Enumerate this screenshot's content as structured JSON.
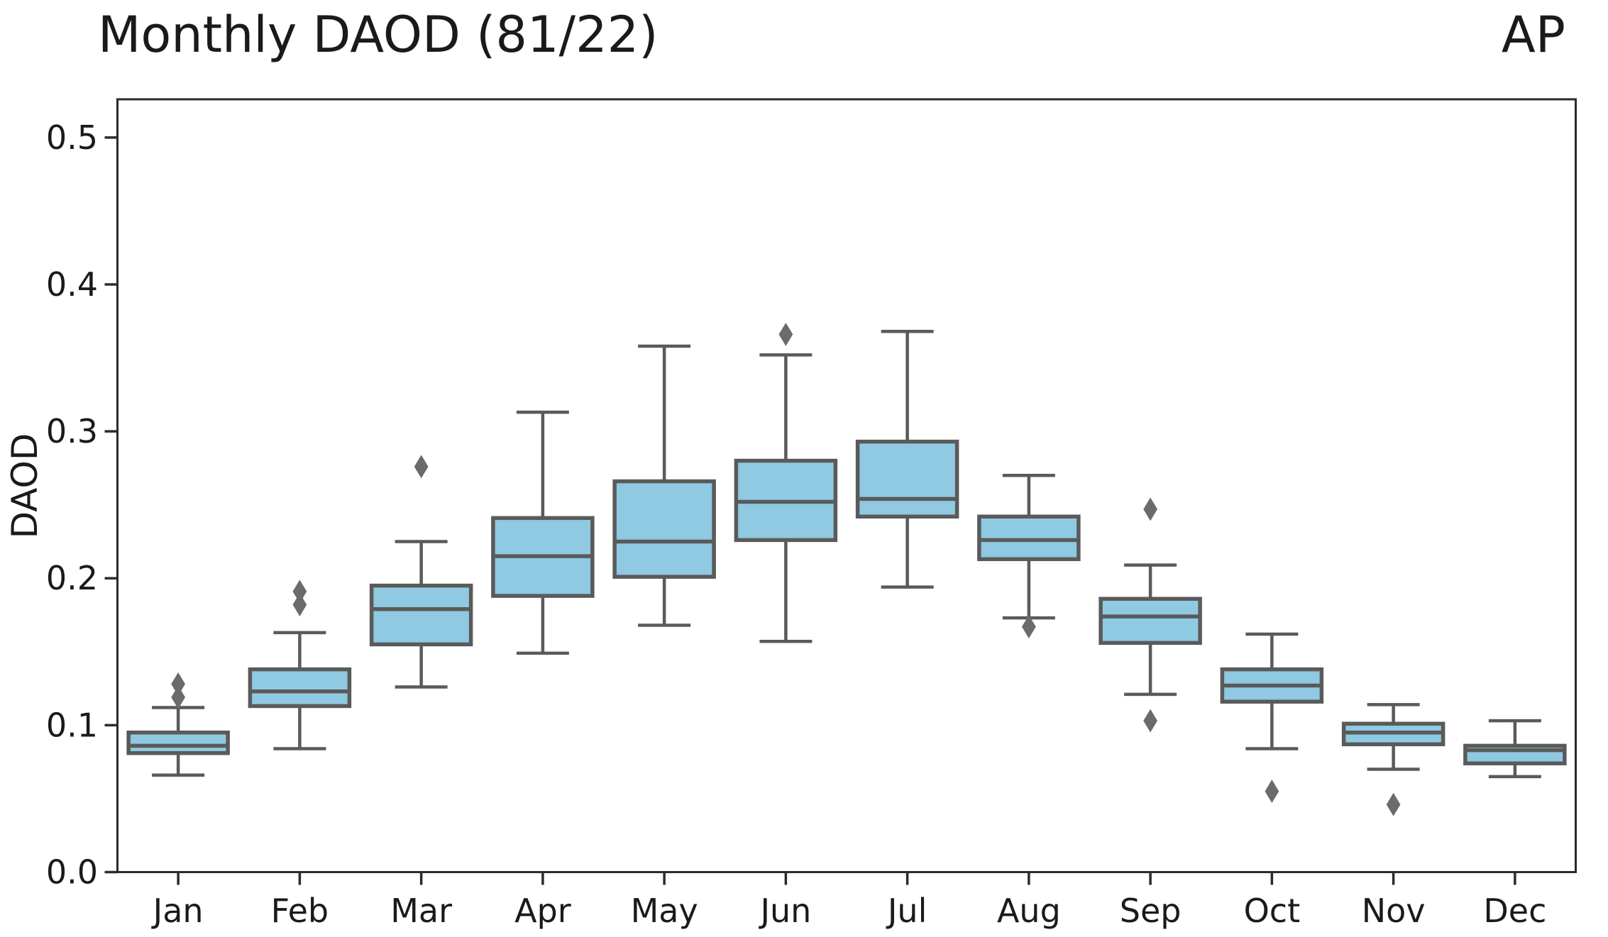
{
  "header": {
    "title": "Monthly DAOD (81/22)",
    "corner_label": "AP"
  },
  "axes": {
    "ylabel": "DAOD",
    "ytick_labels": [
      "0.0",
      "0.1",
      "0.2",
      "0.3",
      "0.4",
      "0.5"
    ],
    "xtick_labels": [
      "Jan",
      "Feb",
      "Mar",
      "Apr",
      "May",
      "Jun",
      "Jul",
      "Aug",
      "Sep",
      "Oct",
      "Nov",
      "Dec"
    ]
  },
  "chart_data": {
    "type": "box",
    "title": "Monthly DAOD (81/22)",
    "annotation": "AP",
    "xlabel": "",
    "ylabel": "DAOD",
    "categories": [
      "Jan",
      "Feb",
      "Mar",
      "Apr",
      "May",
      "Jun",
      "Jul",
      "Aug",
      "Sep",
      "Oct",
      "Nov",
      "Dec"
    ],
    "yticks": [
      0.0,
      0.1,
      0.2,
      0.3,
      0.4,
      0.5
    ],
    "ylim": [
      0.0,
      0.526
    ],
    "grid": false,
    "legend": "none",
    "series": [
      {
        "category": "Jan",
        "whisker_low": 0.066,
        "q1": 0.081,
        "median": 0.086,
        "q3": 0.095,
        "whisker_high": 0.112,
        "outliers": [
          0.119,
          0.128
        ]
      },
      {
        "category": "Feb",
        "whisker_low": 0.084,
        "q1": 0.113,
        "median": 0.123,
        "q3": 0.138,
        "whisker_high": 0.163,
        "outliers": [
          0.182,
          0.191
        ]
      },
      {
        "category": "Mar",
        "whisker_low": 0.126,
        "q1": 0.155,
        "median": 0.179,
        "q3": 0.195,
        "whisker_high": 0.225,
        "outliers": [
          0.276
        ]
      },
      {
        "category": "Apr",
        "whisker_low": 0.149,
        "q1": 0.188,
        "median": 0.215,
        "q3": 0.241,
        "whisker_high": 0.313,
        "outliers": []
      },
      {
        "category": "May",
        "whisker_low": 0.168,
        "q1": 0.201,
        "median": 0.225,
        "q3": 0.266,
        "whisker_high": 0.358,
        "outliers": []
      },
      {
        "category": "Jun",
        "whisker_low": 0.157,
        "q1": 0.226,
        "median": 0.252,
        "q3": 0.28,
        "whisker_high": 0.352,
        "outliers": [
          0.366
        ]
      },
      {
        "category": "Jul",
        "whisker_low": 0.194,
        "q1": 0.242,
        "median": 0.254,
        "q3": 0.293,
        "whisker_high": 0.368,
        "outliers": []
      },
      {
        "category": "Aug",
        "whisker_low": 0.173,
        "q1": 0.213,
        "median": 0.226,
        "q3": 0.242,
        "whisker_high": 0.27,
        "outliers": [
          0.167
        ]
      },
      {
        "category": "Sep",
        "whisker_low": 0.121,
        "q1": 0.156,
        "median": 0.174,
        "q3": 0.186,
        "whisker_high": 0.209,
        "outliers": [
          0.103,
          0.247
        ]
      },
      {
        "category": "Oct",
        "whisker_low": 0.084,
        "q1": 0.116,
        "median": 0.127,
        "q3": 0.138,
        "whisker_high": 0.162,
        "outliers": [
          0.055
        ]
      },
      {
        "category": "Nov",
        "whisker_low": 0.07,
        "q1": 0.087,
        "median": 0.095,
        "q3": 0.101,
        "whisker_high": 0.114,
        "outliers": [
          0.046
        ]
      },
      {
        "category": "Dec",
        "whisker_low": 0.065,
        "q1": 0.074,
        "median": 0.083,
        "q3": 0.086,
        "whisker_high": 0.103,
        "outliers": []
      }
    ],
    "colors": {
      "box_fill": "#8FC9E2",
      "box_edge": "#5A5A5A",
      "whisker": "#5A5A5A",
      "median": "#5A5A5A",
      "flier": "#6B6B6B",
      "spine": "#2B2B2B",
      "text": "#1A1A1A",
      "background": "#FFFFFF"
    }
  }
}
